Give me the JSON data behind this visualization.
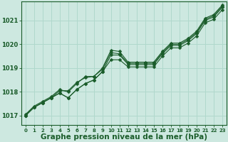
{
  "background_color": "#cde8e0",
  "grid_color": "#b0d8cc",
  "line_color": "#1a5c2a",
  "xlabel": "Graphe pression niveau de la mer (hPa)",
  "xlabel_fontsize": 7.5,
  "ylabel_ticks": [
    1017,
    1018,
    1019,
    1020,
    1021
  ],
  "xlim": [
    -0.5,
    23.5
  ],
  "ylim": [
    1016.6,
    1021.8
  ],
  "xticks": [
    0,
    1,
    2,
    3,
    4,
    5,
    6,
    7,
    8,
    9,
    10,
    11,
    12,
    13,
    14,
    15,
    16,
    17,
    18,
    19,
    20,
    21,
    22,
    23
  ],
  "series": [
    [
      1017.0,
      1017.35,
      1017.55,
      1017.75,
      1017.95,
      1017.75,
      1018.1,
      1018.35,
      1018.5,
      1018.85,
      1019.55,
      1019.55,
      1019.15,
      1019.15,
      1019.15,
      1019.15,
      1019.6,
      1019.95,
      1019.95,
      1020.15,
      1020.45,
      1021.0,
      1021.15,
      1021.55
    ],
    [
      1017.0,
      1017.35,
      1017.55,
      1017.75,
      1017.95,
      1017.75,
      1018.1,
      1018.35,
      1018.5,
      1018.85,
      1019.35,
      1019.35,
      1019.05,
      1019.05,
      1019.05,
      1019.05,
      1019.5,
      1019.85,
      1019.85,
      1020.05,
      1020.35,
      1020.9,
      1021.05,
      1021.45
    ],
    [
      1017.0,
      1017.35,
      1017.55,
      1017.75,
      1018.05,
      1018.05,
      1018.4,
      1018.6,
      1018.65,
      1018.95,
      1019.65,
      1019.6,
      1019.2,
      1019.2,
      1019.2,
      1019.2,
      1019.65,
      1020.0,
      1020.0,
      1020.2,
      1020.5,
      1021.05,
      1021.2,
      1021.6
    ],
    [
      1017.05,
      1017.4,
      1017.6,
      1017.8,
      1018.1,
      1018.0,
      1018.35,
      1018.65,
      1018.65,
      1019.0,
      1019.75,
      1019.7,
      1019.25,
      1019.25,
      1019.25,
      1019.25,
      1019.7,
      1020.05,
      1020.05,
      1020.25,
      1020.55,
      1021.1,
      1021.25,
      1021.65
    ]
  ],
  "marker_size": 2.5,
  "line_width": 0.8
}
